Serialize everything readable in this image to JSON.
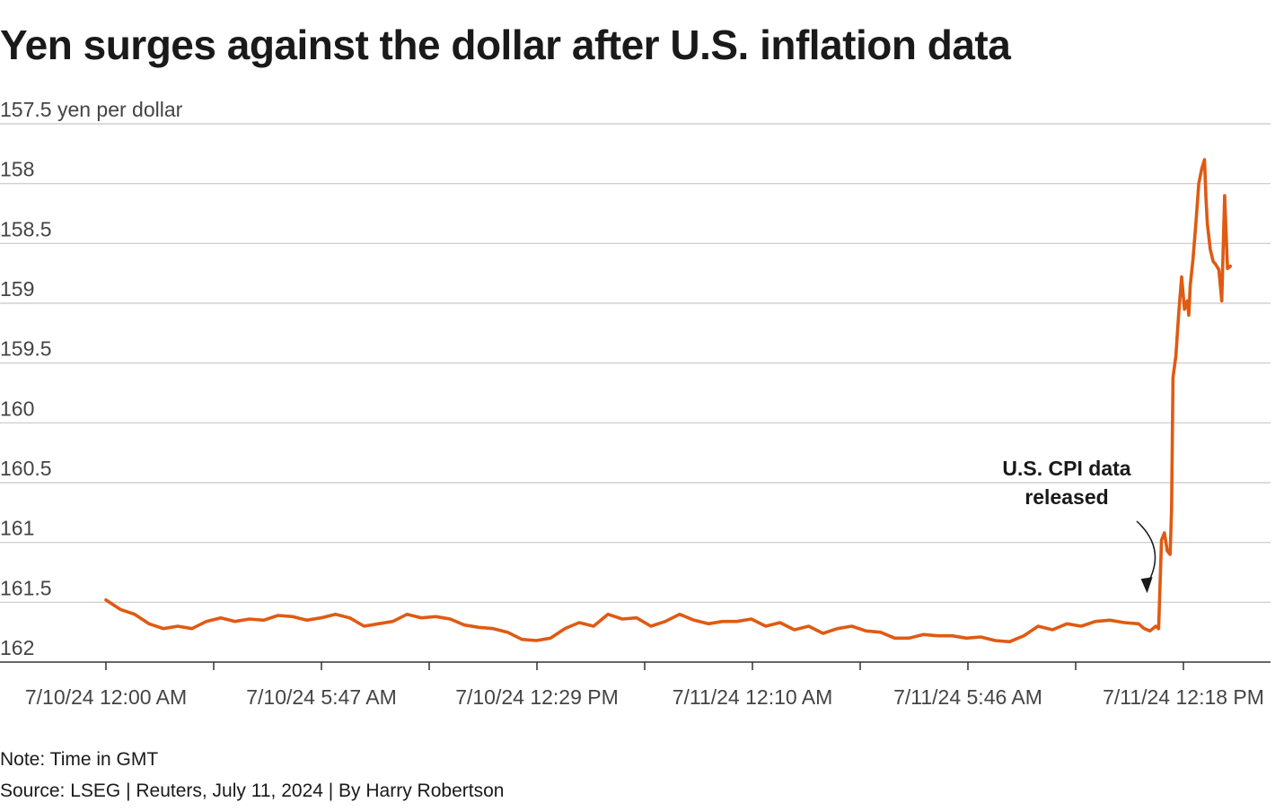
{
  "title": "Yen surges against the dollar after U.S. inflation data",
  "note": "Note: Time in GMT",
  "source": "Source: LSEG | Reuters, July 11, 2024 | By Harry Robertson",
  "colors": {
    "line": "#e05a12",
    "grid": "#c8c8c8",
    "axis": "#333333",
    "text": "#1a1a1a",
    "tick_text": "#444444"
  },
  "chart_data": {
    "type": "line",
    "title": "Yen surges against the dollar after U.S. inflation data",
    "ylabel": "yen per dollar",
    "y_axis_inverted": true,
    "ylim": [
      157.5,
      162
    ],
    "y_ticks": [
      157.5,
      158,
      158.5,
      159,
      159.5,
      160,
      160.5,
      161,
      161.5,
      162
    ],
    "y_tick_labels": [
      "157.5 yen per dollar",
      "158",
      "158.5",
      "159",
      "159.5",
      "160",
      "160.5",
      "161",
      "161.5",
      "162"
    ],
    "x_tick_labels": [
      "7/10/24 12:00 AM",
      "7/10/24 5:47 AM",
      "7/10/24 12:29 PM",
      "7/11/24 12:10 AM",
      "7/11/24 5:46 AM",
      "7/11/24 12:18 PM"
    ],
    "x_range_hours": [
      0,
      40.6
    ],
    "grid": "horizontal",
    "annotation": {
      "lines": [
        "U.S. CPI data",
        "released"
      ],
      "x_hours": 36.3,
      "y": 161.47
    },
    "series": [
      {
        "x_hours": [
          0,
          0.5,
          1.0,
          1.5,
          2.0,
          2.5,
          3.0,
          3.5,
          4.0,
          4.5,
          5.0,
          5.5,
          6.0,
          6.5,
          7.0,
          7.5,
          8.0,
          8.5,
          9.0,
          9.5,
          10.0,
          10.5,
          11.0,
          11.5,
          12.0,
          12.5,
          13.0,
          13.5,
          14.0,
          14.5,
          15.0,
          15.5,
          16.0,
          16.5,
          17.0,
          17.5,
          18.0,
          18.5,
          19.0,
          19.5,
          20.0,
          20.5,
          21.0,
          21.5,
          22.0,
          22.5,
          23.0,
          23.5,
          24.0,
          24.5,
          25.0,
          25.5,
          26.0,
          26.5,
          27.0,
          27.5,
          28.0,
          28.5,
          29.0,
          29.5,
          30.0,
          30.5,
          31.0,
          31.5,
          32.0,
          32.5,
          33.0,
          33.5,
          34.0,
          34.5,
          35.0,
          35.5,
          36.0,
          36.2,
          36.4,
          36.6,
          36.7,
          36.8,
          36.9,
          37.0,
          37.1,
          37.15,
          37.2,
          37.3,
          37.4,
          37.5,
          37.6,
          37.7,
          37.75,
          37.8,
          37.9,
          38.0,
          38.1,
          38.2,
          38.3,
          38.35,
          38.4,
          38.5,
          38.6,
          38.7,
          38.8,
          38.9,
          39.0,
          39.1,
          39.2
        ],
        "values": [
          161.48,
          161.56,
          161.6,
          161.68,
          161.72,
          161.7,
          161.72,
          161.66,
          161.63,
          161.66,
          161.64,
          161.65,
          161.61,
          161.62,
          161.65,
          161.63,
          161.6,
          161.63,
          161.7,
          161.68,
          161.66,
          161.6,
          161.63,
          161.62,
          161.64,
          161.69,
          161.71,
          161.72,
          161.75,
          161.81,
          161.82,
          161.8,
          161.72,
          161.67,
          161.7,
          161.6,
          161.64,
          161.63,
          161.7,
          161.66,
          161.6,
          161.65,
          161.68,
          161.66,
          161.66,
          161.64,
          161.7,
          161.67,
          161.73,
          161.7,
          161.76,
          161.72,
          161.7,
          161.74,
          161.75,
          161.8,
          161.8,
          161.77,
          161.78,
          161.78,
          161.8,
          161.79,
          161.82,
          161.83,
          161.78,
          161.7,
          161.73,
          161.68,
          161.7,
          161.66,
          161.65,
          161.67,
          161.68,
          161.72,
          161.74,
          161.7,
          161.72,
          160.98,
          160.92,
          161.07,
          161.1,
          160.72,
          159.62,
          159.44,
          159.08,
          158.78,
          159.05,
          158.98,
          159.1,
          158.85,
          158.63,
          158.33,
          158.0,
          157.88,
          157.8,
          158.12,
          158.34,
          158.55,
          158.65,
          158.68,
          158.72,
          158.98,
          158.1,
          158.71,
          158.69
        ]
      }
    ]
  }
}
